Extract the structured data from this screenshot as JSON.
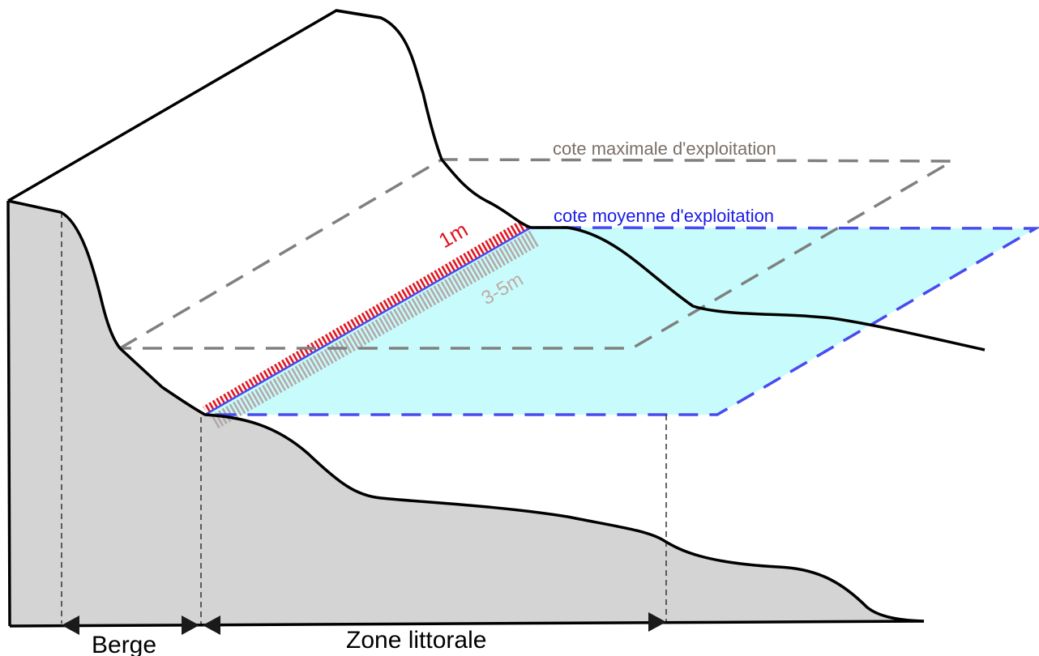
{
  "labels": {
    "cote_maximale": "cote maximale d'exploitation",
    "cote_moyenne": "cote moyenne d'exploitation",
    "depth_1m": "1m",
    "depth_3_5m": "3-5m",
    "berge": "Berge",
    "zone_littorale": "Zone littorale"
  },
  "colors": {
    "terrain": "#d4d4d4",
    "water": "#c8fcfc",
    "max_level_line": "#808080",
    "mean_level_line": "#4a4af0",
    "band_1m": "#e0141e",
    "band_3_5m": "#b4a8a8"
  }
}
